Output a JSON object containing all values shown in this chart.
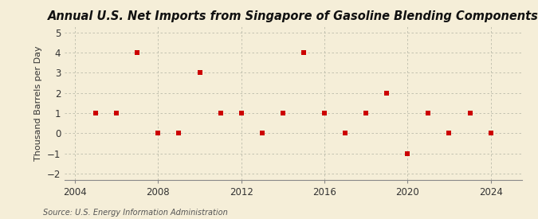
{
  "title": "Annual U.S. Net Imports from Singapore of Gasoline Blending Components",
  "ylabel": "Thousand Barrels per Day",
  "source": "Source: U.S. Energy Information Administration",
  "background_color": "#f5eed8",
  "years": [
    2005,
    2006,
    2007,
    2008,
    2009,
    2010,
    2011,
    2012,
    2013,
    2014,
    2015,
    2016,
    2017,
    2018,
    2019,
    2020,
    2021,
    2022,
    2023,
    2024
  ],
  "values": [
    1,
    1,
    4,
    0,
    0,
    3,
    1,
    1,
    0,
    1,
    4,
    1,
    0,
    1,
    2,
    -1,
    1,
    0,
    1,
    0
  ],
  "xlim": [
    2003.5,
    2025.5
  ],
  "ylim": [
    -2.3,
    5.3
  ],
  "yticks": [
    -2,
    -1,
    0,
    1,
    2,
    3,
    4,
    5
  ],
  "xticks": [
    2004,
    2008,
    2012,
    2016,
    2020,
    2024
  ],
  "marker_color": "#cc0000",
  "marker_size": 18,
  "grid_color": "#bbbbaa",
  "title_fontsize": 10.5,
  "label_fontsize": 8,
  "tick_fontsize": 8.5,
  "source_fontsize": 7
}
